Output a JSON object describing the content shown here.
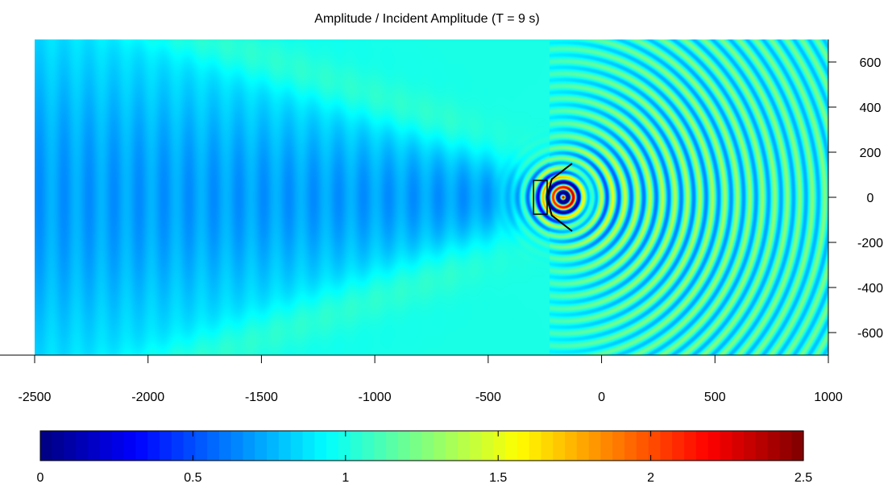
{
  "chart_data": {
    "type": "heatmap",
    "title": "Amplitude / Incident Amplitude (T = 9 s)",
    "xlabel": "",
    "ylabel": "",
    "xlim": [
      -2500,
      1000
    ],
    "ylim": [
      -700,
      700
    ],
    "x_ticks": [
      -2500,
      -2000,
      -1500,
      -1000,
      -500,
      0,
      500,
      1000
    ],
    "y_ticks": [
      600,
      400,
      200,
      0,
      -200,
      -400,
      -600
    ],
    "y_axis_side": "right",
    "colorbar": {
      "colormap": "jet",
      "range": [
        0,
        2.5
      ],
      "ticks": [
        0,
        0.5,
        1,
        1.5,
        2,
        2.5
      ],
      "placement": "bottom"
    },
    "structures": {
      "breakwater": {
        "type": "rectangle",
        "x_range": [
          -300,
          -240
        ],
        "y_range": [
          -75,
          75
        ]
      },
      "reflector_arc": {
        "type": "curve",
        "points": [
          [
            -130,
            150
          ],
          [
            -220,
            80
          ],
          [
            -240,
            0
          ],
          [
            -220,
            -80
          ],
          [
            -130,
            -150
          ]
        ]
      }
    },
    "field_description": {
      "incident_direction": "from right",
      "source_region": [
        -170,
        0
      ],
      "background_value": 1.0,
      "peak_value": 2.5,
      "shadow_zone_min_value": 0.6
    }
  }
}
